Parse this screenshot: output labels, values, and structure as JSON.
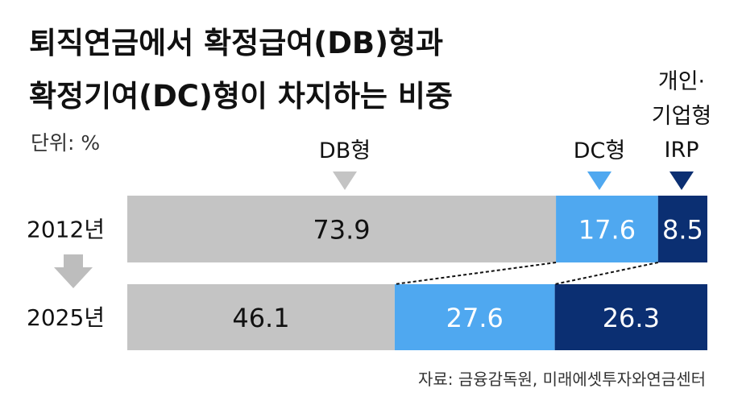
{
  "title_line1": "퇴직연금에서 확정급여(DB)형과",
  "title_line2": "확정기여(DC)형이 차지하는 비중",
  "unit_label": "단위: %",
  "source": "자료: 금융감독원, 미래에셋투자와연금센터",
  "legend": {
    "db": "DB형",
    "dc": "DC형",
    "irp_line1": "개인·",
    "irp_line2": "기업형",
    "irp_line3": "IRP"
  },
  "colors": {
    "db": "#c4c4c4",
    "dc": "#4fa8f0",
    "irp": "#0b2f72"
  },
  "chart_data": {
    "type": "bar",
    "orientation": "horizontal",
    "stacked": true,
    "categories": [
      "2012년",
      "2025년"
    ],
    "series": [
      {
        "name": "DB형",
        "values": [
          73.9,
          46.1
        ],
        "labels": [
          "73.9",
          "46.1"
        ]
      },
      {
        "name": "DC형",
        "values": [
          17.6,
          27.6
        ],
        "labels": [
          "17.6",
          "27.6"
        ]
      },
      {
        "name": "개인·기업형 IRP",
        "values": [
          8.5,
          26.3
        ],
        "labels": [
          "8.5",
          "26.3"
        ]
      }
    ],
    "title": "퇴직연금에서 확정급여(DB)형과 확정기여(DC)형이 차지하는 비중",
    "unit": "%",
    "xlim": [
      0,
      100
    ]
  }
}
